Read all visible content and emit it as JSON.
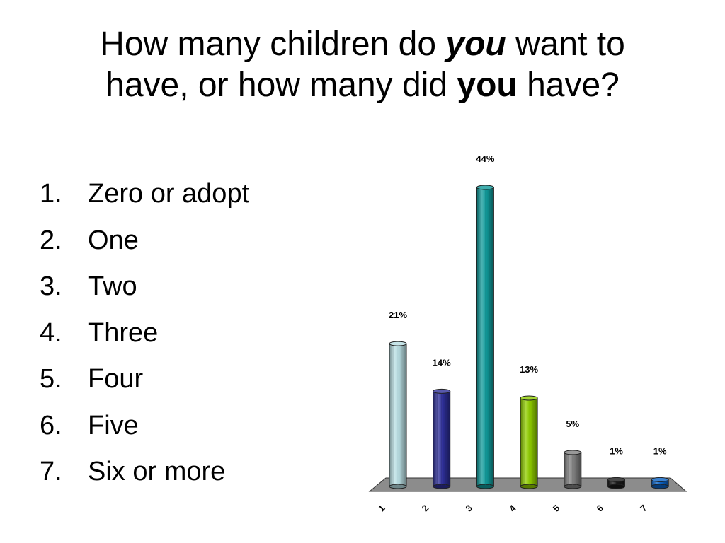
{
  "title": {
    "part1": "How many children do ",
    "part2": "you",
    "part3": " want to",
    "part4": "have, or how many did ",
    "part5": "you",
    "part6": " have?"
  },
  "options": [
    {
      "num": "1.",
      "label": "Zero or adopt"
    },
    {
      "num": "2.",
      "label": "One"
    },
    {
      "num": "3.",
      "label": "Two"
    },
    {
      "num": "4.",
      "label": "Three"
    },
    {
      "num": "5.",
      "label": "Four"
    },
    {
      "num": "6.",
      "label": "Five"
    },
    {
      "num": "7.",
      "label": "Six or more"
    }
  ],
  "chart_data": {
    "type": "bar",
    "categories": [
      "1",
      "2",
      "3",
      "4",
      "5",
      "6",
      "7"
    ],
    "values": [
      21,
      14,
      44,
      13,
      5,
      1,
      1
    ],
    "data_labels": [
      "21%",
      "14%",
      "44%",
      "13%",
      "5%",
      "1%",
      "1%"
    ],
    "colors": [
      "#b8dde2",
      "#2e2f98",
      "#109a9a",
      "#8fcc00",
      "#808080",
      "#1a1a1a",
      "#0a63c6"
    ],
    "floor_color": "#8c8c8c",
    "ylim": [
      0,
      44
    ],
    "grid": false,
    "legend": "none"
  }
}
